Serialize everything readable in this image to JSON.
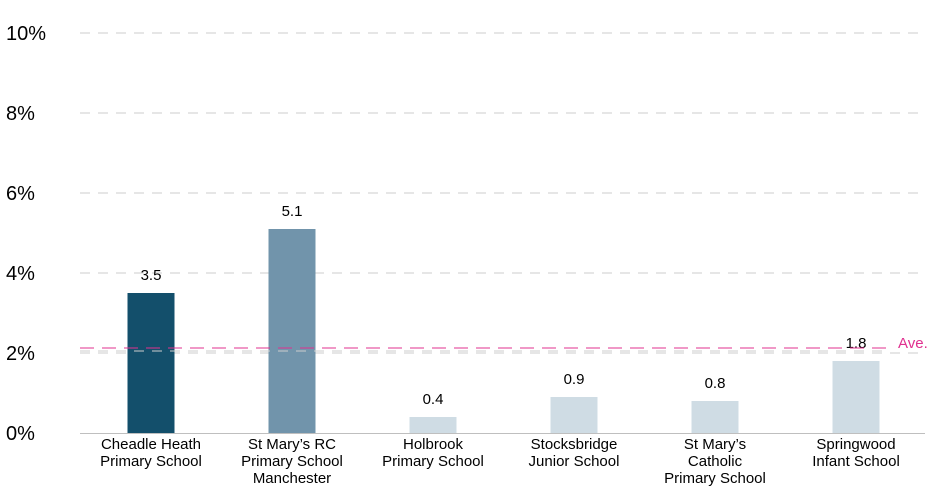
{
  "chart_data": {
    "type": "bar",
    "categories": [
      [
        "Cheadle Heath",
        "Primary School"
      ],
      [
        "St Mary’s RC",
        "Primary School",
        "Manchester"
      ],
      [
        "Holbrook",
        "Primary School"
      ],
      [
        "Stocksbridge",
        "Junior School"
      ],
      [
        "St Mary’s",
        "Catholic",
        "Primary School"
      ],
      [
        "Springwood",
        "Infant School"
      ]
    ],
    "values": [
      3.5,
      5.1,
      0.4,
      0.9,
      0.8,
      1.8
    ],
    "data_labels": [
      "3.5",
      "5.1",
      "0.4",
      "0.9",
      "0.8",
      "1.8"
    ],
    "bar_colors": [
      "#134f6b",
      "#7194ab",
      "#cfdce4",
      "#cfdce4",
      "#cfdce4",
      "#cfdce4"
    ],
    "ylim": [
      0,
      10
    ],
    "yticks": [
      0,
      2,
      4,
      6,
      8,
      10
    ],
    "ytick_labels": [
      "0%",
      "2%",
      "4%",
      "6%",
      "8%",
      "10%"
    ],
    "grid": true,
    "grid_color": "#cccccc",
    "reference_line": {
      "label": "Ave.",
      "value": 2.1,
      "color": "#e0308f"
    }
  }
}
